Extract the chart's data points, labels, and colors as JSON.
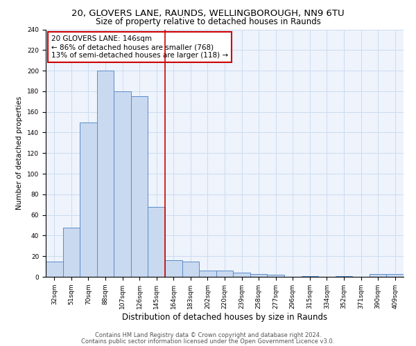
{
  "title1": "20, GLOVERS LANE, RAUNDS, WELLINGBOROUGH, NN9 6TU",
  "title2": "Size of property relative to detached houses in Raunds",
  "xlabel": "Distribution of detached houses by size in Raunds",
  "ylabel": "Number of detached properties",
  "categories": [
    "32sqm",
    "51sqm",
    "70sqm",
    "88sqm",
    "107sqm",
    "126sqm",
    "145sqm",
    "164sqm",
    "183sqm",
    "202sqm",
    "220sqm",
    "239sqm",
    "258sqm",
    "277sqm",
    "296sqm",
    "315sqm",
    "334sqm",
    "352sqm",
    "371sqm",
    "390sqm",
    "409sqm"
  ],
  "values": [
    15,
    48,
    150,
    200,
    180,
    175,
    68,
    16,
    15,
    6,
    6,
    4,
    3,
    2,
    0,
    1,
    0,
    1,
    0,
    3,
    3
  ],
  "bar_color": "#c9d9f0",
  "bar_edge_color": "#5b8cc8",
  "vline_x_index": 6,
  "vline_color": "#cc0000",
  "annotation_line1": "20 GLOVERS LANE: 146sqm",
  "annotation_line2": "← 86% of detached houses are smaller (768)",
  "annotation_line3": "13% of semi-detached houses are larger (118) →",
  "annotation_box_color": "white",
  "annotation_box_edge_color": "#cc0000",
  "annotation_fontsize": 7.5,
  "ylim": [
    0,
    240
  ],
  "yticks": [
    0,
    20,
    40,
    60,
    80,
    100,
    120,
    140,
    160,
    180,
    200,
    220,
    240
  ],
  "grid_color": "#ccdcf0",
  "background_color": "#eef3fc",
  "footnote1": "Contains HM Land Registry data © Crown copyright and database right 2024.",
  "footnote2": "Contains public sector information licensed under the Open Government Licence v3.0.",
  "title1_fontsize": 9.5,
  "title2_fontsize": 8.5,
  "xlabel_fontsize": 8.5,
  "ylabel_fontsize": 7.5,
  "tick_fontsize": 6.5,
  "footnote_fontsize": 6.0
}
